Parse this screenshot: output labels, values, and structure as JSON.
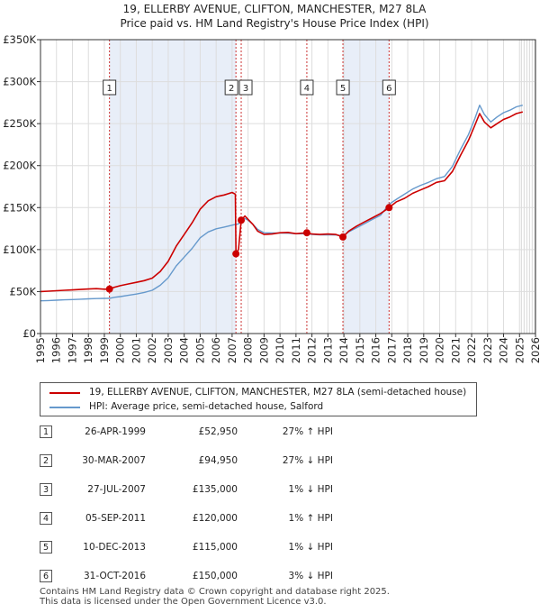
{
  "chart_data": {
    "type": "line",
    "title": "19, ELLERBY AVENUE, CLIFTON, MANCHESTER, M27 8LA",
    "subtitle": "Price paid vs. HM Land Registry's House Price Index (HPI)",
    "xlim": [
      1995,
      2026
    ],
    "ylim": [
      0,
      350000
    ],
    "y_ticks": [
      0,
      50000,
      100000,
      150000,
      200000,
      250000,
      300000,
      350000
    ],
    "y_tick_labels": [
      "£0",
      "£50K",
      "£100K",
      "£150K",
      "£200K",
      "£250K",
      "£300K",
      "£350K"
    ],
    "x_ticks": [
      1995,
      1996,
      1997,
      1998,
      1999,
      2000,
      2001,
      2002,
      2003,
      2004,
      2005,
      2006,
      2007,
      2008,
      2009,
      2010,
      2011,
      2012,
      2013,
      2014,
      2015,
      2016,
      2017,
      2018,
      2019,
      2020,
      2021,
      2022,
      2023,
      2024,
      2025,
      2026
    ],
    "x_tick_labels": [
      "1995",
      "1996",
      "1997",
      "1998",
      "1999",
      "2000",
      "2001",
      "2002",
      "2003",
      "2004",
      "2005",
      "2006",
      "2007",
      "2008",
      "2009",
      "2010",
      "2011",
      "2012",
      "2013",
      "2014",
      "2015",
      "2016",
      "2017",
      "2018",
      "2019",
      "2020",
      "2021",
      "2022",
      "2023",
      "2024",
      "2025",
      "2026"
    ],
    "shaded_ranges": [
      [
        1999.32,
        2007.24
      ],
      [
        2013.94,
        2016.83
      ]
    ],
    "forecast_start": 2025.0,
    "series": [
      {
        "name": "19, ELLERBY AVENUE, CLIFTON, MANCHESTER, M27 8LA (semi-detached house)",
        "color": "#cc0000",
        "x": [
          1995.0,
          1995.5,
          1996.0,
          1996.5,
          1997.0,
          1997.5,
          1998.0,
          1998.5,
          1999.0,
          1999.32,
          1999.6,
          2000.0,
          2000.5,
          2001.0,
          2001.5,
          2002.0,
          2002.5,
          2003.0,
          2003.5,
          2004.0,
          2004.5,
          2005.0,
          2005.5,
          2006.0,
          2006.5,
          2007.0,
          2007.2,
          2007.24,
          2007.4,
          2007.57,
          2007.8,
          2008.0,
          2008.3,
          2008.6,
          2009.0,
          2009.5,
          2010.0,
          2010.5,
          2011.0,
          2011.68,
          2012.0,
          2012.5,
          2013.0,
          2013.5,
          2013.94,
          2014.3,
          2014.8,
          2015.3,
          2015.8,
          2016.3,
          2016.83,
          2017.3,
          2017.8,
          2018.3,
          2018.8,
          2019.3,
          2019.8,
          2020.3,
          2020.8,
          2021.3,
          2021.8,
          2022.2,
          2022.5,
          2022.8,
          2023.2,
          2023.6,
          2024.0,
          2024.4,
          2024.8,
          2025.2
        ],
        "values": [
          50000,
          50500,
          51000,
          51500,
          52000,
          52500,
          53000,
          53500,
          52800,
          52950,
          55000,
          57000,
          59000,
          61000,
          63000,
          66000,
          74000,
          86000,
          104000,
          118000,
          132000,
          148000,
          158000,
          163000,
          165000,
          168000,
          166000,
          94950,
          100000,
          135000,
          140000,
          136000,
          130000,
          122000,
          118000,
          118500,
          120000,
          120500,
          119000,
          120000,
          118500,
          118000,
          118500,
          118000,
          115000,
          122000,
          128000,
          133000,
          138000,
          143000,
          150000,
          157000,
          161000,
          167000,
          171000,
          175000,
          180000,
          182000,
          193000,
          212000,
          230000,
          248000,
          262000,
          252000,
          245000,
          250000,
          255000,
          258000,
          262000,
          264000
        ]
      },
      {
        "name": "HPI: Average price, semi-detached house, Salford",
        "color": "#6699cc",
        "x": [
          1995.0,
          1995.5,
          1996.0,
          1996.5,
          1997.0,
          1997.5,
          1998.0,
          1998.5,
          1999.0,
          1999.32,
          1999.6,
          2000.0,
          2000.5,
          2001.0,
          2001.5,
          2002.0,
          2002.5,
          2003.0,
          2003.5,
          2004.0,
          2004.5,
          2005.0,
          2005.5,
          2006.0,
          2006.5,
          2007.0,
          2007.2,
          2007.24,
          2007.4,
          2007.57,
          2007.8,
          2008.0,
          2008.3,
          2008.6,
          2009.0,
          2009.5,
          2010.0,
          2010.5,
          2011.0,
          2011.68,
          2012.0,
          2012.5,
          2013.0,
          2013.5,
          2013.94,
          2014.3,
          2014.8,
          2015.3,
          2015.8,
          2016.3,
          2016.83,
          2017.3,
          2017.8,
          2018.3,
          2018.8,
          2019.3,
          2019.8,
          2020.3,
          2020.8,
          2021.3,
          2021.8,
          2022.2,
          2022.5,
          2022.8,
          2023.2,
          2023.6,
          2024.0,
          2024.4,
          2024.8,
          2025.2
        ],
        "values": [
          39000,
          39300,
          39700,
          40100,
          40500,
          40900,
          41300,
          41700,
          41900,
          42000,
          43000,
          44000,
          45500,
          47000,
          49000,
          51500,
          57500,
          66500,
          80500,
          91000,
          101500,
          114000,
          121000,
          124800,
          126800,
          129000,
          130000,
          130000,
          130500,
          136000,
          137000,
          135000,
          130000,
          124000,
          120000,
          119700,
          119700,
          119500,
          118800,
          118800,
          118000,
          117500,
          117700,
          117300,
          116500,
          121000,
          126000,
          131000,
          136000,
          141000,
          154000,
          160000,
          166000,
          172000,
          176500,
          180000,
          184500,
          187000,
          199000,
          219000,
          237000,
          256000,
          272000,
          261000,
          252000,
          258000,
          263000,
          266000,
          270000,
          272000
        ]
      }
    ],
    "sales": [
      {
        "id": "1",
        "x": 1999.32,
        "y": 52950,
        "date": "26-APR-1999",
        "price": "£52,950",
        "hpi": "27% ↑ HPI"
      },
      {
        "id": "2",
        "x": 2007.24,
        "y": 94950,
        "date": "30-MAR-2007",
        "price": "£94,950",
        "hpi": "27% ↓ HPI"
      },
      {
        "id": "3",
        "x": 2007.57,
        "y": 135000,
        "date": "27-JUL-2007",
        "price": "£135,000",
        "hpi": "1% ↓ HPI"
      },
      {
        "id": "4",
        "x": 2011.68,
        "y": 120000,
        "date": "05-SEP-2011",
        "price": "£120,000",
        "hpi": "1% ↑ HPI"
      },
      {
        "id": "5",
        "x": 2013.94,
        "y": 115000,
        "date": "10-DEC-2013",
        "price": "£115,000",
        "hpi": "1% ↓ HPI"
      },
      {
        "id": "6",
        "x": 2016.83,
        "y": 150000,
        "date": "31-OCT-2016",
        "price": "£150,000",
        "hpi": "3% ↓ HPI"
      }
    ]
  },
  "legend": {
    "property_label": "19, ELLERBY AVENUE, CLIFTON, MANCHESTER, M27 8LA (semi-detached house)",
    "hpi_label": "HPI: Average price, semi-detached house, Salford"
  },
  "footer": {
    "line1": "Contains HM Land Registry data © Crown copyright and database right 2025.",
    "line2": "This data is licensed under the Open Government Licence v3.0."
  },
  "colors": {
    "property": "#cc0000",
    "hpi": "#6699cc",
    "shade": "#e8eef8",
    "grid": "#dddddd",
    "vline": "#cc3333"
  }
}
